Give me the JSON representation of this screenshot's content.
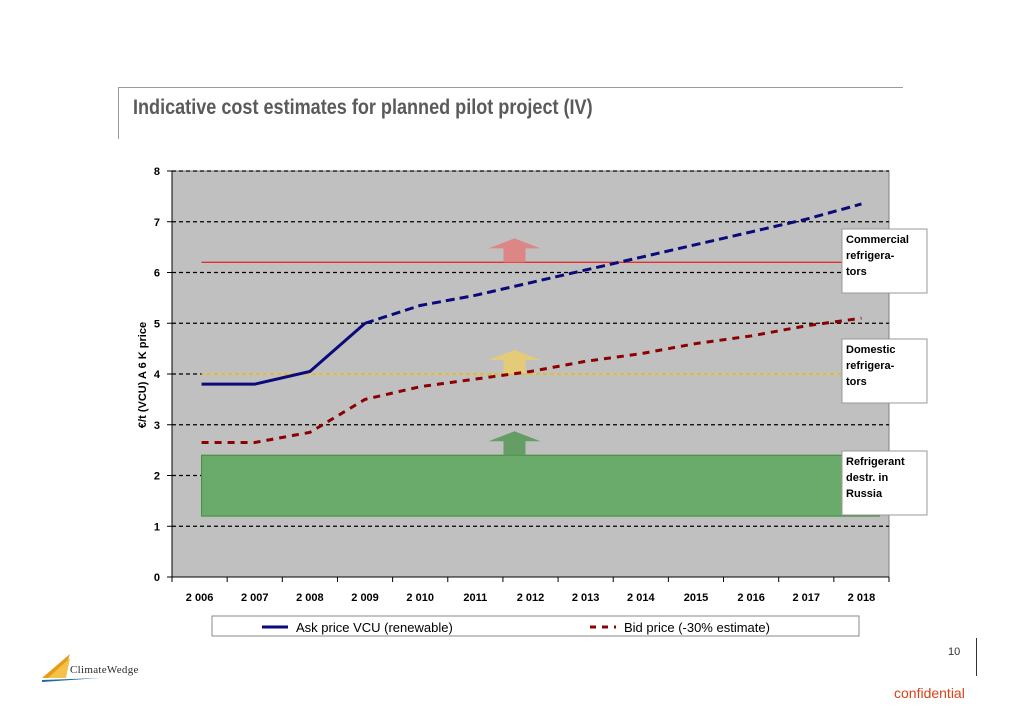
{
  "slide": {
    "title": "Indicative cost estimates for planned  pilot project (IV)",
    "page_number": "10",
    "confidential": "confidential",
    "logo_text": "ClimateWedge"
  },
  "colors": {
    "plot_bg": "#c0c0c0",
    "ask": "#0a0a7a",
    "bid": "#8b0000",
    "commercial": "#e03030",
    "domestic": "#f0d040",
    "destruction": "#6aaa6a",
    "confidential": "#d9421a"
  },
  "chart_data": {
    "type": "line",
    "x": [
      "2006",
      "2007",
      "2008",
      "2009",
      "2010",
      "2011",
      "2012",
      "2013",
      "2014",
      "2015",
      "2016",
      "2017",
      "2018"
    ],
    "x_tick_labels": [
      "2 006",
      "2 007",
      "2 008",
      "2 009",
      "2 010",
      "2011",
      "2 012",
      "2 013",
      "2 014",
      "2015",
      "2 016",
      "2 017",
      "2 018"
    ],
    "ylabel": "€/t (VCU) A 6 K price",
    "ylim": [
      0,
      8
    ],
    "yticks": [
      "0",
      "1",
      "2",
      "3",
      "4",
      "5",
      "6",
      "7",
      "8"
    ],
    "grid": "horizontal dashed",
    "series": [
      {
        "name": "Ask price VCU (renewable)",
        "values": [
          3.8,
          3.8,
          4.05,
          5.0,
          5.35,
          5.55,
          5.8,
          6.05,
          6.3,
          6.55,
          6.8,
          7.05,
          7.35
        ]
      },
      {
        "name": "Bid price (-30% estimate)",
        "values": [
          2.65,
          2.65,
          2.85,
          3.5,
          3.75,
          3.9,
          4.05,
          4.25,
          4.4,
          4.6,
          4.75,
          4.95,
          5.1
        ]
      }
    ],
    "reference_lines": [
      {
        "label": "Commercial refrigera-tors",
        "value": 6.2,
        "color": "#e03030",
        "arrow_color": "#e08080"
      },
      {
        "label": "Domestic refrigera-tors",
        "value": 4.0,
        "color": "#e8c850",
        "arrow_color": "#e8cc70"
      }
    ],
    "band": {
      "label": "Refrigerant destr. in Russia",
      "from": 1.2,
      "to": 2.4,
      "color": "#6aaa6a"
    },
    "legend": {
      "placement": "bottom",
      "entries": [
        "Ask price VCU (renewable)",
        "Bid price (-30% estimate)"
      ]
    }
  }
}
